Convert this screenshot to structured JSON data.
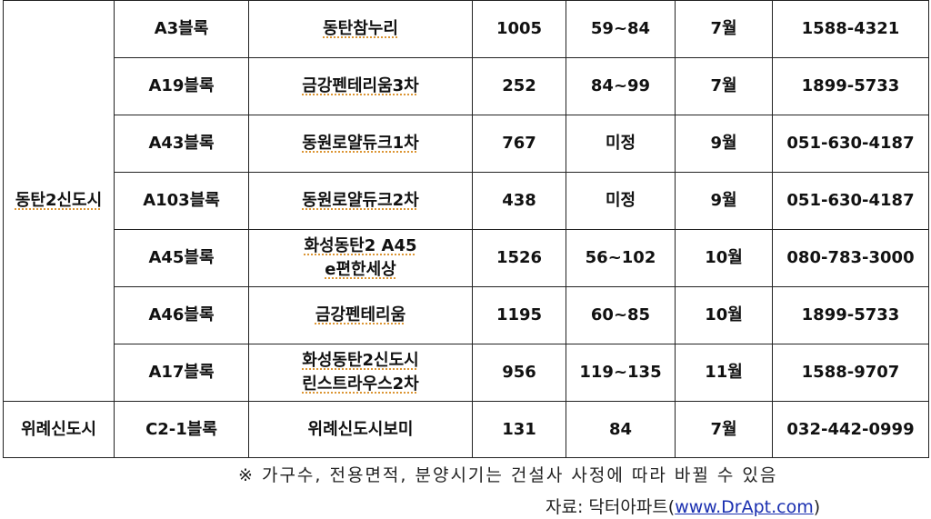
{
  "table": {
    "rows": [
      {
        "region": "동탄2신도시",
        "block": "A3블록",
        "name": "동탄참누리",
        "units": "1005",
        "area": "59~84",
        "month": "7월",
        "phone": "1588-4321"
      },
      {
        "block": "A19블록",
        "name": "금강펜테리움3차",
        "units": "252",
        "area": "84~99",
        "month": "7월",
        "phone": "1899-5733"
      },
      {
        "block": "A43블록",
        "name": "동원로얄듀크1차",
        "units": "767",
        "area": "미정",
        "month": "9월",
        "phone": "051-630-4187"
      },
      {
        "block": "A103블록",
        "name": "동원로얄듀크2차",
        "units": "438",
        "area": "미정",
        "month": "9월",
        "phone": "051-630-4187"
      },
      {
        "block": "A45블록",
        "name": "화성동탄2 A45",
        "name2": "e편한세상",
        "units": "1526",
        "area": "56~102",
        "month": "10월",
        "phone": "080-783-3000"
      },
      {
        "block": "A46블록",
        "name": "금강펜테리움",
        "units": "1195",
        "area": "60~85",
        "month": "10월",
        "phone": "1899-5733"
      },
      {
        "block": "A17블록",
        "name": "화성동탄2신도시",
        "name2": "린스트라우스2차",
        "units": "956",
        "area": "119~135",
        "month": "11월",
        "phone": "1588-9707"
      },
      {
        "region": "위례신도시",
        "block": "C2-1블록",
        "name": "위례신도시보미",
        "units": "131",
        "area": "84",
        "month": "7월",
        "phone": "032-442-0999"
      }
    ]
  },
  "footnote": "※ 가구수, 전용면적, 분양시기는 건설사 사정에 따라 바뀔 수 있음",
  "source": {
    "prefix": "자료: 닥터아파트(",
    "link": "www.DrApt.com",
    "suffix": ")"
  }
}
